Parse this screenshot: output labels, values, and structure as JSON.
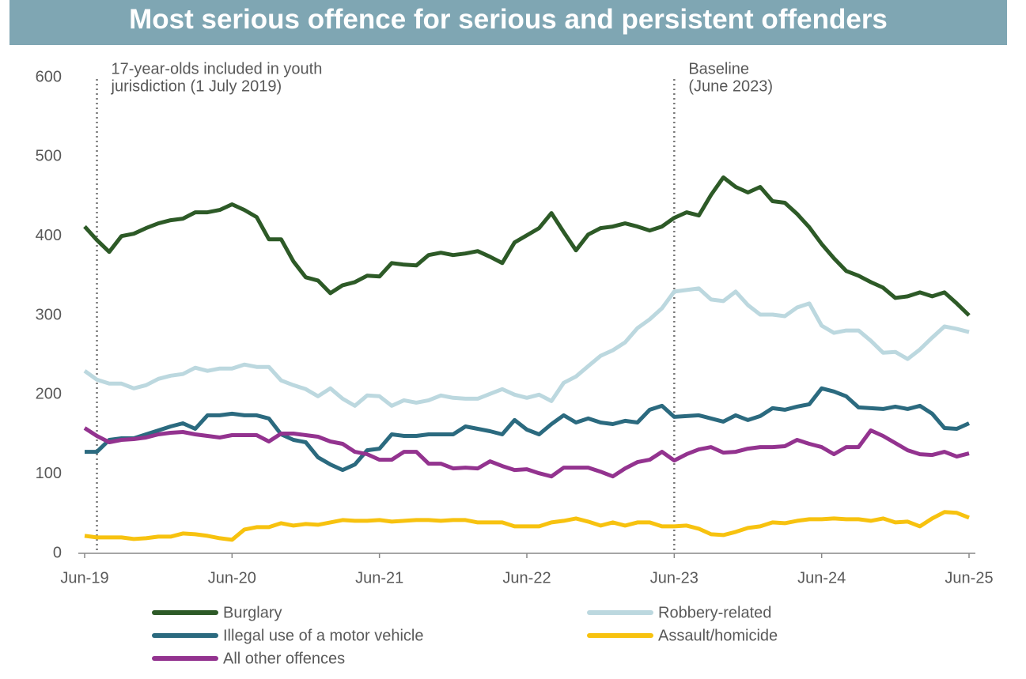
{
  "chart_data": {
    "type": "line",
    "title": "Most serious offence for serious and persistent offenders",
    "categories": [
      "Jun-19",
      null,
      null,
      null,
      null,
      null,
      null,
      null,
      null,
      null,
      null,
      null,
      "Jun-20",
      null,
      null,
      null,
      null,
      null,
      null,
      null,
      null,
      null,
      null,
      null,
      "Jun-21",
      null,
      null,
      null,
      null,
      null,
      null,
      null,
      null,
      null,
      null,
      null,
      "Jun-22",
      null,
      null,
      null,
      null,
      null,
      null,
      null,
      null,
      null,
      null,
      null,
      "Jun-23",
      null,
      null,
      null,
      null,
      null,
      null,
      null,
      null,
      null,
      null,
      null,
      "Jun-24",
      null,
      null,
      null,
      null,
      null,
      null,
      null,
      null,
      null,
      null,
      null,
      "Jun-25"
    ],
    "ylim": [
      0,
      600
    ],
    "yticks": [
      0,
      100,
      200,
      300,
      400,
      500,
      600
    ],
    "grid": false,
    "annotations": [
      {
        "x": 1,
        "text": [
          "17-year-olds included in youth",
          "jurisdiction (1 July 2019)"
        ]
      },
      {
        "x": 48,
        "text": [
          "Baseline",
          "(June 2023)"
        ]
      }
    ],
    "series": [
      {
        "name": "Burglary",
        "color": "#2d5a27",
        "values": [
          412,
          395,
          380,
          400,
          403,
          410,
          416,
          420,
          422,
          430,
          430,
          433,
          440,
          433,
          424,
          396,
          396,
          368,
          348,
          344,
          328,
          338,
          342,
          350,
          349,
          366,
          364,
          363,
          376,
          379,
          376,
          378,
          381,
          374,
          366,
          392,
          401,
          410,
          429,
          405,
          382,
          402,
          410,
          412,
          416,
          412,
          407,
          412,
          423,
          430,
          426,
          452,
          474,
          462,
          455,
          462,
          444,
          442,
          428,
          411,
          390,
          372,
          356,
          350,
          342,
          335,
          322,
          324,
          329,
          324,
          329,
          315,
          300
        ]
      },
      {
        "name": "Robbery-related",
        "color": "#bcd8df",
        "values": [
          230,
          219,
          214,
          214,
          208,
          212,
          220,
          224,
          226,
          234,
          230,
          233,
          233,
          238,
          235,
          235,
          218,
          212,
          207,
          198,
          208,
          195,
          186,
          199,
          198,
          186,
          193,
          190,
          193,
          199,
          196,
          195,
          195,
          201,
          207,
          200,
          196,
          200,
          192,
          215,
          223,
          236,
          249,
          256,
          266,
          284,
          295,
          309,
          330,
          332,
          334,
          320,
          318,
          330,
          313,
          301,
          301,
          299,
          310,
          315,
          287,
          278,
          281,
          281,
          268,
          253,
          254,
          245,
          257,
          272,
          286,
          283,
          279
        ]
      },
      {
        "name": "Illegal use of a motor vehicle",
        "color": "#2b6a7f",
        "values": [
          128,
          128,
          143,
          145,
          145,
          150,
          155,
          160,
          164,
          157,
          174,
          174,
          176,
          174,
          174,
          170,
          150,
          143,
          140,
          121,
          112,
          105,
          112,
          130,
          132,
          150,
          148,
          148,
          150,
          150,
          150,
          160,
          157,
          154,
          150,
          168,
          156,
          150,
          163,
          174,
          165,
          170,
          165,
          163,
          167,
          165,
          181,
          186,
          172,
          173,
          174,
          170,
          166,
          174,
          168,
          173,
          183,
          181,
          185,
          188,
          208,
          204,
          198,
          184,
          183,
          182,
          185,
          182,
          186,
          176,
          158,
          157,
          164
        ]
      },
      {
        "name": "Assault/homicide",
        "color": "#f7c20f",
        "values": [
          22,
          20,
          20,
          20,
          18,
          19,
          21,
          21,
          25,
          24,
          22,
          19,
          17,
          30,
          33,
          33,
          38,
          35,
          37,
          36,
          39,
          42,
          41,
          41,
          42,
          40,
          41,
          42,
          42,
          41,
          42,
          42,
          39,
          39,
          39,
          34,
          34,
          34,
          39,
          41,
          44,
          40,
          35,
          39,
          35,
          39,
          39,
          34,
          34,
          35,
          31,
          24,
          23,
          27,
          32,
          34,
          39,
          38,
          41,
          43,
          43,
          44,
          43,
          43,
          41,
          44,
          39,
          40,
          34,
          44,
          52,
          51,
          45
        ]
      },
      {
        "name": "All other offences",
        "color": "#93338f",
        "values": [
          158,
          148,
          140,
          143,
          144,
          146,
          150,
          152,
          153,
          150,
          148,
          146,
          149,
          149,
          149,
          141,
          151,
          151,
          149,
          147,
          141,
          138,
          128,
          125,
          118,
          118,
          128,
          128,
          113,
          113,
          107,
          108,
          107,
          116,
          110,
          105,
          106,
          101,
          97,
          108,
          108,
          108,
          103,
          97,
          107,
          115,
          118,
          128,
          117,
          125,
          131,
          134,
          127,
          128,
          132,
          134,
          134,
          135,
          143,
          138,
          134,
          125,
          134,
          134,
          155,
          148,
          139,
          130,
          125,
          124,
          128,
          122,
          126
        ]
      }
    ]
  }
}
